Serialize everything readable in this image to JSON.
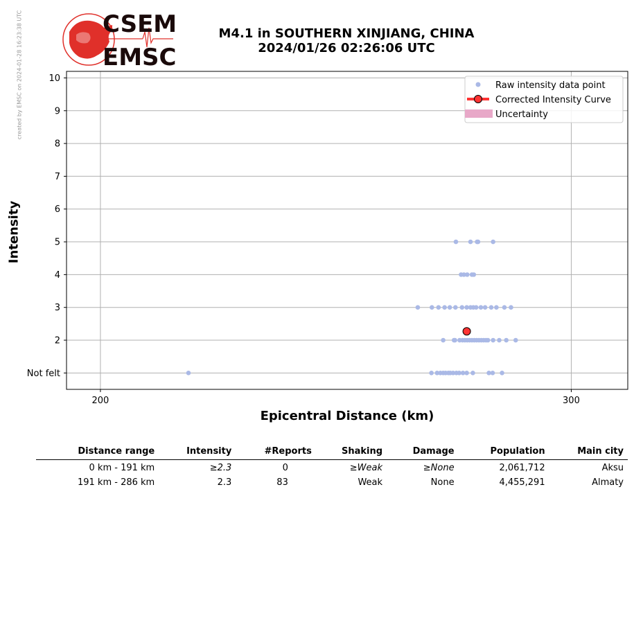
{
  "header": {
    "credit": "created by EMSC on 2024-01-28 16:23:38 UTC",
    "logo_top": "CSEM",
    "logo_bottom": "EMSC",
    "title_line1": "M4.1 in SOUTHERN XINJIANG, CHINA",
    "title_line2": "2024/01/26 02:26:06 UTC"
  },
  "chart_data": {
    "type": "scatter",
    "xlabel": "Epicentral Distance (km)",
    "ylabel": "Intensity",
    "xlim": [
      192.8,
      312
    ],
    "ylim": [
      0.5,
      10.2
    ],
    "xticks": [
      200,
      300
    ],
    "yticks": [
      1,
      2,
      3,
      4,
      5,
      6,
      7,
      8,
      9,
      10
    ],
    "ytick_labels": [
      "Not felt",
      "2",
      "3",
      "4",
      "5",
      "6",
      "7",
      "8",
      "9",
      "10"
    ],
    "grid": true,
    "legend_position": "top-right",
    "legend": [
      "Raw intensity data point",
      "Corrected Intensity Curve",
      "Uncertainty"
    ],
    "series": [
      {
        "name": "Raw intensity data point",
        "color": "#aab9e6",
        "points": [
          [
            218.7,
            1
          ],
          [
            270.3,
            1
          ],
          [
            271.5,
            1
          ],
          [
            272.2,
            1
          ],
          [
            272.8,
            1
          ],
          [
            273.3,
            1
          ],
          [
            273.9,
            1
          ],
          [
            274.3,
            1
          ],
          [
            274.9,
            1
          ],
          [
            275.6,
            1
          ],
          [
            276.2,
            1
          ],
          [
            277.0,
            1
          ],
          [
            277.8,
            1
          ],
          [
            279.1,
            1
          ],
          [
            282.5,
            1
          ],
          [
            283.3,
            1
          ],
          [
            285.3,
            1
          ],
          [
            272.8,
            2
          ],
          [
            275.1,
            2
          ],
          [
            275.3,
            2
          ],
          [
            276.3,
            2
          ],
          [
            276.9,
            2
          ],
          [
            277.4,
            2
          ],
          [
            277.9,
            2
          ],
          [
            278.4,
            2
          ],
          [
            278.9,
            2
          ],
          [
            279.4,
            2
          ],
          [
            279.9,
            2
          ],
          [
            280.4,
            2
          ],
          [
            280.9,
            2
          ],
          [
            281.4,
            2
          ],
          [
            281.9,
            2
          ],
          [
            282.3,
            2
          ],
          [
            283.4,
            2
          ],
          [
            284.7,
            2
          ],
          [
            286.2,
            2
          ],
          [
            288.2,
            2
          ],
          [
            267.4,
            3
          ],
          [
            270.4,
            3
          ],
          [
            271.8,
            3
          ],
          [
            273.1,
            3
          ],
          [
            274.2,
            3
          ],
          [
            275.4,
            3
          ],
          [
            276.8,
            3
          ],
          [
            277.8,
            3
          ],
          [
            278.6,
            3
          ],
          [
            279.2,
            3
          ],
          [
            279.8,
            3
          ],
          [
            280.8,
            3
          ],
          [
            281.7,
            3
          ],
          [
            283.0,
            3
          ],
          [
            284.1,
            3
          ],
          [
            285.8,
            3
          ],
          [
            287.2,
            3
          ],
          [
            276.6,
            4
          ],
          [
            277.2,
            4
          ],
          [
            277.9,
            4
          ],
          [
            278.9,
            4
          ],
          [
            279.3,
            4
          ],
          [
            275.5,
            5
          ],
          [
            278.6,
            5
          ],
          [
            280.0,
            5
          ],
          [
            280.2,
            5
          ],
          [
            283.4,
            5
          ]
        ]
      },
      {
        "name": "Corrected Intensity Curve",
        "color": "#ff3333",
        "points": [
          [
            277.8,
            2.27
          ]
        ]
      }
    ]
  },
  "summary_table": {
    "headers": [
      "Distance range",
      "Intensity",
      "#Reports",
      "Shaking",
      "Damage",
      "Population",
      "Main city"
    ],
    "rows": [
      {
        "distance": "0 km -  191 km",
        "intensity": "≥2.3",
        "reports": "0",
        "shaking": "≥Weak",
        "damage": "≥None",
        "population": "2,061,712",
        "city": "Aksu"
      },
      {
        "distance": "191 km -  286 km",
        "intensity": "2.3",
        "reports": "83",
        "shaking": "Weak",
        "damage": "None",
        "population": "4,455,291",
        "city": "Almaty"
      }
    ]
  }
}
